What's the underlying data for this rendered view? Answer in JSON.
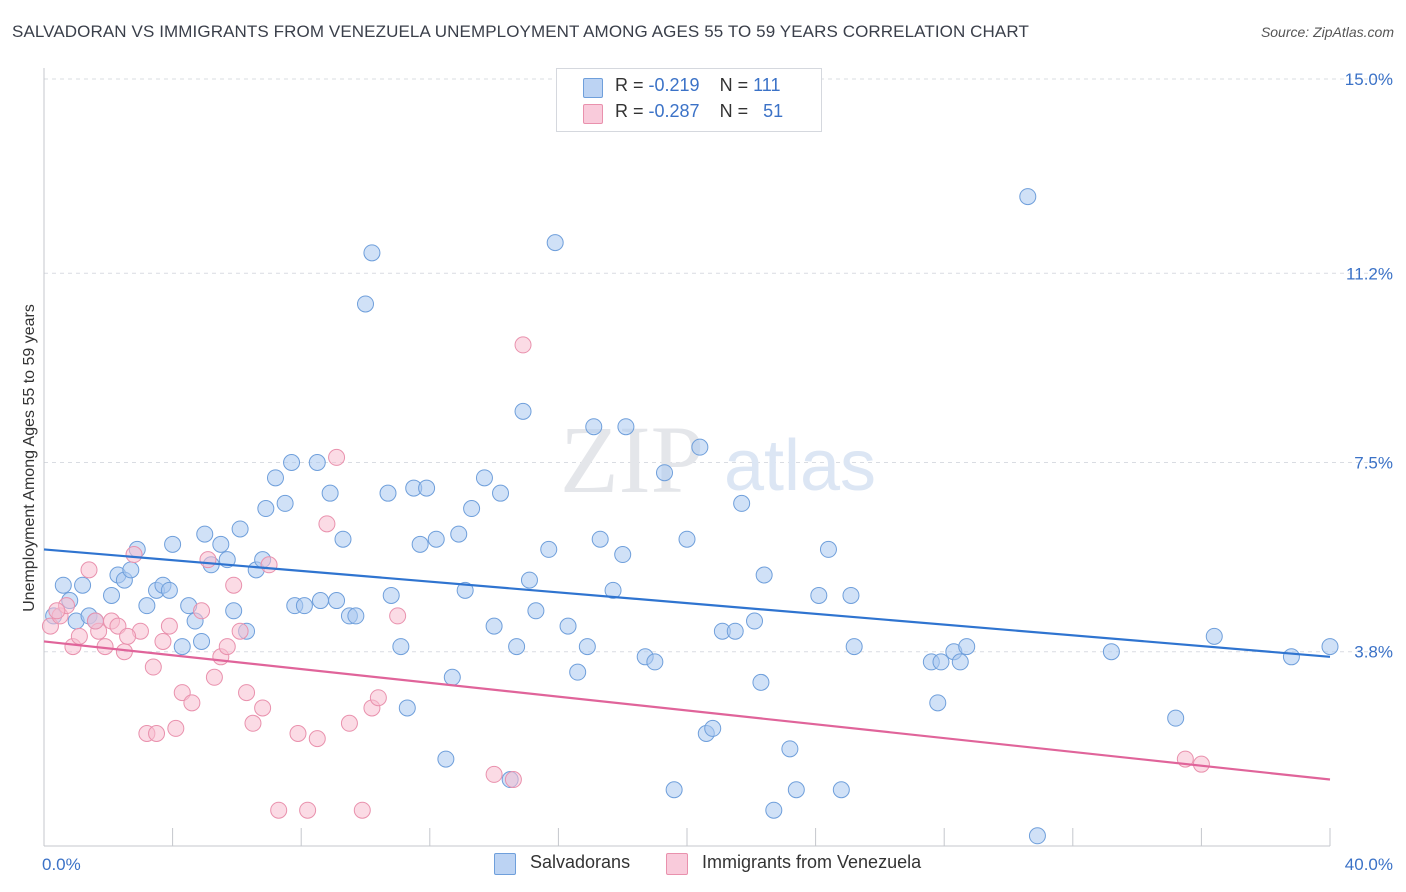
{
  "title": "SALVADORAN VS IMMIGRANTS FROM VENEZUELA UNEMPLOYMENT AMONG AGES 55 TO 59 YEARS CORRELATION CHART",
  "source": "Source: ZipAtlas.com",
  "watermark": {
    "zip": "ZIP",
    "atlas": "atlas"
  },
  "legend_top": [
    {
      "r_label": "R =",
      "r_value": "-0.219",
      "n_label": "N =",
      "n_value": "111"
    },
    {
      "r_label": "R =",
      "r_value": "-0.287",
      "n_label": "N =",
      "n_value": "51"
    }
  ],
  "legend_bottom": {
    "series1": "Salvadorans",
    "series2": "Immigrants from Venezuela"
  },
  "colors": {
    "blue_fill": "#a9c8f0",
    "blue_stroke": "#6f9fdb",
    "blue_line": "#2f74d0",
    "pink_fill": "#f7bdd0",
    "pink_stroke": "#e991ad",
    "pink_line": "#e0649a",
    "tick_text": "#3b72c7",
    "grid": "#d9dce2"
  },
  "chart_data": {
    "type": "scatter",
    "title": "SALVADORAN VS IMMIGRANTS FROM VENEZUELA UNEMPLOYMENT AMONG AGES 55 TO 59 YEARS CORRELATION CHART",
    "xlabel": "",
    "ylabel": "Unemployment Among Ages 55 to 59 years",
    "xlim": [
      0,
      40
    ],
    "ylim": [
      0,
      15
    ],
    "x_tick_labels": [
      "0.0%",
      "40.0%"
    ],
    "y_ticks": [
      3.8,
      7.5,
      11.2,
      15.0
    ],
    "y_tick_labels": [
      "3.8%",
      "7.5%",
      "11.2%",
      "15.0%"
    ],
    "grid": true,
    "legend_position": "top-center",
    "series": [
      {
        "name": "Salvadorans",
        "r": -0.219,
        "n": 111,
        "trend": {
          "x": [
            0,
            40
          ],
          "y": [
            5.8,
            3.7
          ]
        },
        "points": [
          [
            0.3,
            4.5
          ],
          [
            0.6,
            5.1
          ],
          [
            0.8,
            4.8
          ],
          [
            1.0,
            4.4
          ],
          [
            1.2,
            5.1
          ],
          [
            1.4,
            4.5
          ],
          [
            1.6,
            4.4
          ],
          [
            2.1,
            4.9
          ],
          [
            2.3,
            5.3
          ],
          [
            2.5,
            5.2
          ],
          [
            2.7,
            5.4
          ],
          [
            2.9,
            5.8
          ],
          [
            3.2,
            4.7
          ],
          [
            3.5,
            5.0
          ],
          [
            3.7,
            5.1
          ],
          [
            3.9,
            5.0
          ],
          [
            4.0,
            5.9
          ],
          [
            4.3,
            3.9
          ],
          [
            4.5,
            4.7
          ],
          [
            4.7,
            4.4
          ],
          [
            4.9,
            4.0
          ],
          [
            5.0,
            6.1
          ],
          [
            5.2,
            5.5
          ],
          [
            5.5,
            5.9
          ],
          [
            5.7,
            5.6
          ],
          [
            5.9,
            4.6
          ],
          [
            6.1,
            6.2
          ],
          [
            6.3,
            4.2
          ],
          [
            6.6,
            5.4
          ],
          [
            6.8,
            5.6
          ],
          [
            6.9,
            6.6
          ],
          [
            7.2,
            7.2
          ],
          [
            7.5,
            6.7
          ],
          [
            7.7,
            7.5
          ],
          [
            7.8,
            4.7
          ],
          [
            8.1,
            4.7
          ],
          [
            8.5,
            7.5
          ],
          [
            8.6,
            4.8
          ],
          [
            8.9,
            6.9
          ],
          [
            9.1,
            4.8
          ],
          [
            9.3,
            6.0
          ],
          [
            9.5,
            4.5
          ],
          [
            9.7,
            4.5
          ],
          [
            10.0,
            10.6
          ],
          [
            10.2,
            11.6
          ],
          [
            10.7,
            6.9
          ],
          [
            10.8,
            4.9
          ],
          [
            11.1,
            3.9
          ],
          [
            11.3,
            2.7
          ],
          [
            11.5,
            7.0
          ],
          [
            11.7,
            5.9
          ],
          [
            11.9,
            7.0
          ],
          [
            12.2,
            6.0
          ],
          [
            12.5,
            1.7
          ],
          [
            12.7,
            3.3
          ],
          [
            12.9,
            6.1
          ],
          [
            13.1,
            5.0
          ],
          [
            13.3,
            6.6
          ],
          [
            13.7,
            7.2
          ],
          [
            14.0,
            4.3
          ],
          [
            14.2,
            6.9
          ],
          [
            14.5,
            1.3
          ],
          [
            14.7,
            3.9
          ],
          [
            14.9,
            8.5
          ],
          [
            15.1,
            5.2
          ],
          [
            15.3,
            4.6
          ],
          [
            15.7,
            5.8
          ],
          [
            15.9,
            11.8
          ],
          [
            16.3,
            4.3
          ],
          [
            16.6,
            3.4
          ],
          [
            16.9,
            3.9
          ],
          [
            17.1,
            8.2
          ],
          [
            17.3,
            6.0
          ],
          [
            17.7,
            5.0
          ],
          [
            18.0,
            5.7
          ],
          [
            18.1,
            8.2
          ],
          [
            18.7,
            3.7
          ],
          [
            19.0,
            3.6
          ],
          [
            19.3,
            7.3
          ],
          [
            19.6,
            1.1
          ],
          [
            20.0,
            6.0
          ],
          [
            20.4,
            7.8
          ],
          [
            20.6,
            2.2
          ],
          [
            20.8,
            2.3
          ],
          [
            21.1,
            4.2
          ],
          [
            21.5,
            4.2
          ],
          [
            21.7,
            6.7
          ],
          [
            22.1,
            4.4
          ],
          [
            22.3,
            3.2
          ],
          [
            22.4,
            5.3
          ],
          [
            22.7,
            0.7
          ],
          [
            23.2,
            1.9
          ],
          [
            23.4,
            1.1
          ],
          [
            24.1,
            4.9
          ],
          [
            24.4,
            5.8
          ],
          [
            24.8,
            1.1
          ],
          [
            25.1,
            4.9
          ],
          [
            25.2,
            3.9
          ],
          [
            27.6,
            3.6
          ],
          [
            27.8,
            2.8
          ],
          [
            27.9,
            3.6
          ],
          [
            28.3,
            3.8
          ],
          [
            28.5,
            3.6
          ],
          [
            28.7,
            3.9
          ],
          [
            30.6,
            12.7
          ],
          [
            30.9,
            0.2
          ],
          [
            33.2,
            3.8
          ],
          [
            35.2,
            2.5
          ],
          [
            36.4,
            4.1
          ],
          [
            38.8,
            3.7
          ],
          [
            40.0,
            3.9
          ]
        ]
      },
      {
        "name": "Immigrants from Venezuela",
        "r": -0.287,
        "n": 51,
        "trend": {
          "x": [
            0,
            40
          ],
          "y": [
            4.0,
            1.3
          ]
        },
        "points": [
          [
            0.2,
            4.3
          ],
          [
            0.5,
            4.5
          ],
          [
            0.7,
            4.7
          ],
          [
            0.9,
            3.9
          ],
          [
            1.1,
            4.1
          ],
          [
            1.4,
            5.4
          ],
          [
            1.7,
            4.2
          ],
          [
            1.9,
            3.9
          ],
          [
            2.1,
            4.4
          ],
          [
            2.3,
            4.3
          ],
          [
            2.5,
            3.8
          ],
          [
            2.8,
            5.7
          ],
          [
            3.0,
            4.2
          ],
          [
            3.2,
            2.2
          ],
          [
            3.4,
            3.5
          ],
          [
            3.7,
            4.0
          ],
          [
            3.9,
            4.3
          ],
          [
            4.1,
            2.3
          ],
          [
            4.3,
            3.0
          ],
          [
            4.6,
            2.8
          ],
          [
            4.9,
            4.6
          ],
          [
            5.1,
            5.6
          ],
          [
            5.3,
            3.3
          ],
          [
            5.5,
            3.7
          ],
          [
            5.7,
            3.9
          ],
          [
            5.9,
            5.1
          ],
          [
            6.1,
            4.2
          ],
          [
            6.3,
            3.0
          ],
          [
            6.5,
            2.4
          ],
          [
            7.0,
            5.5
          ],
          [
            7.3,
            0.7
          ],
          [
            7.9,
            2.2
          ],
          [
            8.2,
            0.7
          ],
          [
            8.5,
            2.1
          ],
          [
            8.8,
            6.3
          ],
          [
            9.1,
            7.6
          ],
          [
            9.5,
            2.4
          ],
          [
            9.9,
            0.7
          ],
          [
            10.2,
            2.7
          ],
          [
            10.4,
            2.9
          ],
          [
            11.0,
            4.5
          ],
          [
            14.0,
            1.4
          ],
          [
            14.6,
            1.3
          ],
          [
            14.9,
            9.8
          ],
          [
            35.5,
            1.7
          ],
          [
            36.0,
            1.6
          ],
          [
            0.4,
            4.6
          ],
          [
            1.6,
            4.4
          ],
          [
            2.6,
            4.1
          ],
          [
            6.8,
            2.7
          ],
          [
            3.5,
            2.2
          ]
        ]
      }
    ]
  }
}
